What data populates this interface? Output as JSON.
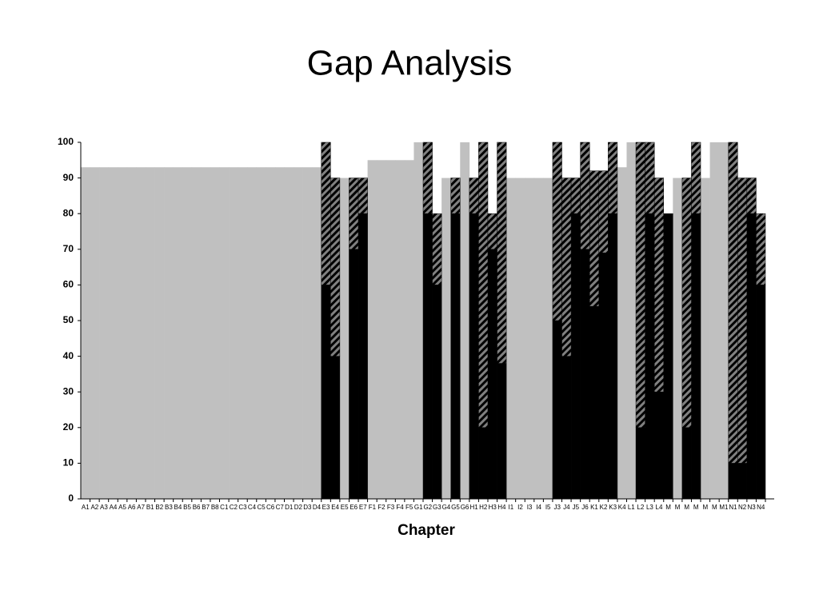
{
  "chart_data": {
    "type": "stacked-bar",
    "title": "Gap Analysis",
    "x_label": "Chapter",
    "categories": [
      "A1",
      "A2",
      "A3",
      "A4",
      "A5",
      "A6",
      "A7",
      "B1",
      "B2",
      "B3",
      "B4",
      "B5",
      "B6",
      "B7",
      "B8",
      "C1",
      "C2",
      "C3",
      "C4",
      "C5",
      "C6",
      "C7",
      "D1",
      "D2",
      "D3",
      "D4",
      "E3",
      "E4",
      "E5",
      "E6",
      "E7",
      "F1",
      "F2",
      "F3",
      "F4",
      "F5",
      "G1",
      "G2",
      "G3",
      "G4",
      "G5",
      "G6",
      "H1",
      "H2",
      "H3",
      "H4",
      "I1",
      "I2",
      "I3",
      "I4",
      "I5",
      "J3",
      "J4",
      "J5",
      "J6",
      "K1",
      "K2",
      "K3",
      "K4",
      "L1",
      "L2",
      "L3",
      "L4",
      "M",
      "M",
      "M",
      "M",
      "M",
      "M",
      "M1",
      "N1",
      "N2",
      "N3",
      "N4"
    ],
    "background": {
      "color": "#c0c0c0",
      "values": [
        93,
        93,
        93,
        93,
        93,
        93,
        93,
        93,
        93,
        93,
        93,
        93,
        93,
        93,
        93,
        93,
        93,
        93,
        93,
        93,
        93,
        93,
        93,
        93,
        93,
        93,
        null,
        null,
        90,
        null,
        null,
        95,
        95,
        95,
        95,
        95,
        100,
        null,
        null,
        90,
        null,
        100,
        null,
        null,
        null,
        null,
        90,
        90,
        90,
        90,
        90,
        null,
        null,
        null,
        null,
        null,
        null,
        null,
        93,
        100,
        null,
        null,
        null,
        null,
        90,
        null,
        null,
        90,
        100,
        100,
        null,
        null,
        null,
        null
      ]
    },
    "series": [
      {
        "color": "#000000",
        "values": [
          null,
          null,
          null,
          null,
          null,
          null,
          null,
          null,
          null,
          null,
          null,
          null,
          null,
          null,
          null,
          null,
          null,
          null,
          null,
          null,
          null,
          null,
          null,
          null,
          null,
          null,
          60,
          40,
          null,
          70,
          80,
          null,
          null,
          null,
          null,
          null,
          null,
          80,
          60,
          null,
          80,
          null,
          80,
          20,
          70,
          38,
          null,
          null,
          null,
          null,
          null,
          50,
          40,
          80,
          70,
          54,
          69,
          80,
          null,
          null,
          20,
          80,
          30,
          80,
          null,
          20,
          80,
          null,
          null,
          null,
          10,
          10,
          80,
          60
        ]
      },
      {
        "color": "#808080",
        "values": [
          null,
          null,
          null,
          null,
          null,
          null,
          null,
          null,
          null,
          null,
          null,
          null,
          null,
          null,
          null,
          null,
          null,
          null,
          null,
          null,
          null,
          null,
          null,
          null,
          null,
          null,
          40,
          50,
          null,
          20,
          10,
          null,
          null,
          null,
          null,
          null,
          null,
          20,
          20,
          null,
          10,
          null,
          10,
          80,
          10,
          62,
          null,
          null,
          null,
          null,
          null,
          50,
          50,
          10,
          30,
          38,
          23,
          20,
          null,
          null,
          80,
          20,
          60,
          null,
          null,
          70,
          20,
          null,
          null,
          null,
          90,
          80,
          10,
          20
        ]
      }
    ],
    "ylim": [
      0,
      100
    ],
    "yticks": [
      0,
      10,
      20,
      30,
      40,
      50,
      60,
      70,
      80,
      90,
      100
    ]
  }
}
